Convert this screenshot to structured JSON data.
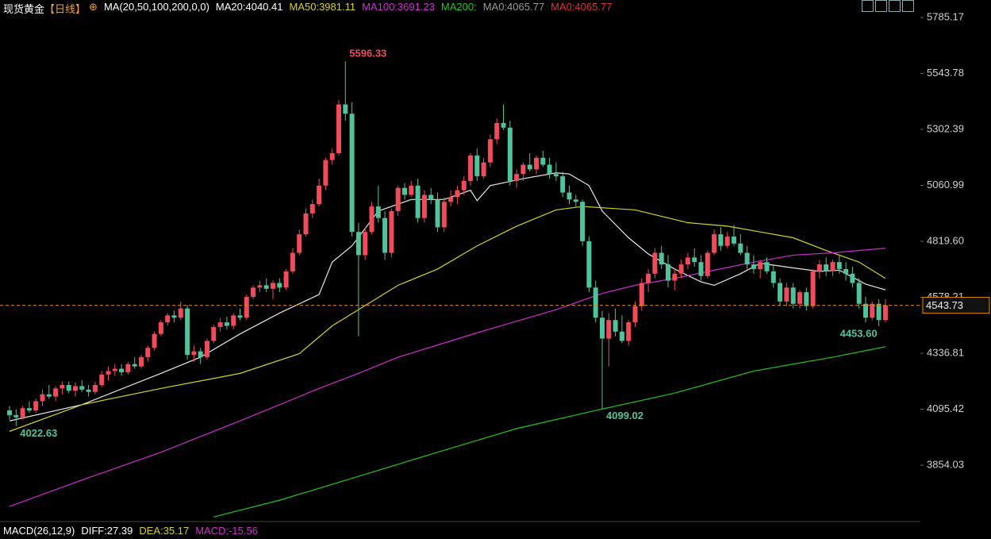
{
  "header": {
    "instrument": "现货黄金",
    "period": "【日线】",
    "ma_params": "MA(20,50,100,200,0,0)",
    "ma_readouts": [
      {
        "text": "MA20:4040.41",
        "color": "#ffffff"
      },
      {
        "text": "MA50:3981.11",
        "color": "#d6d21e"
      },
      {
        "text": "MA100:3691.23",
        "color": "#d030d0"
      },
      {
        "text": "MA200:",
        "color": "#22c422"
      },
      {
        "text": "MA0:4065.77",
        "color": "#9a9a9a"
      },
      {
        "text": "MA0:4065.77",
        "color": "#e03030"
      }
    ]
  },
  "macd_header": [
    {
      "text": "MACD(26,12,9)",
      "color": "#ffffff"
    },
    {
      "text": "DIFF:27.39",
      "color": "#ffffff"
    },
    {
      "text": "DEA:35.17",
      "color": "#d6d21e"
    },
    {
      "text": "MACD:-15.56",
      "color": "#d030d0"
    }
  ],
  "chart_data": {
    "type": "candlestick",
    "up_color": "#ef4b5a",
    "down_color": "#4fc39a",
    "ylim": [
      3617.8,
      5860.5
    ],
    "yticks": [
      3854.03,
      4095.42,
      4336.81,
      4578.21,
      {
        "value": 4819.6,
        "label": "4819.60"
      },
      5060.99,
      5302.39,
      5543.78,
      5785.17
    ],
    "ohlc": [
      [
        4090,
        4110,
        4050,
        4070
      ],
      [
        4070,
        4095,
        4022.63,
        4060
      ],
      [
        4060,
        4110,
        4050,
        4100
      ],
      [
        4100,
        4130,
        4080,
        4090
      ],
      [
        4090,
        4140,
        4080,
        4130
      ],
      [
        4130,
        4180,
        4110,
        4160
      ],
      [
        4160,
        4200,
        4140,
        4150
      ],
      [
        4150,
        4195,
        4130,
        4185
      ],
      [
        4185,
        4215,
        4160,
        4200
      ],
      [
        4200,
        4215,
        4165,
        4175
      ],
      [
        4175,
        4210,
        4150,
        4195
      ],
      [
        4195,
        4220,
        4170,
        4180
      ],
      [
        4180,
        4200,
        4150,
        4170
      ],
      [
        4170,
        4215,
        4160,
        4200
      ],
      [
        4200,
        4260,
        4190,
        4245
      ],
      [
        4245,
        4280,
        4220,
        4260
      ],
      [
        4260,
        4290,
        4240,
        4270
      ],
      [
        4270,
        4290,
        4240,
        4255
      ],
      [
        4255,
        4300,
        4245,
        4290
      ],
      [
        4290,
        4320,
        4270,
        4280
      ],
      [
        4280,
        4330,
        4270,
        4320
      ],
      [
        4320,
        4370,
        4300,
        4360
      ],
      [
        4360,
        4430,
        4350,
        4420
      ],
      [
        4420,
        4480,
        4410,
        4470
      ],
      [
        4470,
        4510,
        4455,
        4500
      ],
      [
        4500,
        4520,
        4470,
        4490
      ],
      [
        4490,
        4560,
        4480,
        4530
      ],
      [
        4530,
        4545,
        4310,
        4330
      ],
      [
        4330,
        4370,
        4300,
        4345
      ],
      [
        4345,
        4360,
        4290,
        4320
      ],
      [
        4320,
        4400,
        4310,
        4390
      ],
      [
        4390,
        4460,
        4380,
        4450
      ],
      [
        4450,
        4490,
        4430,
        4470
      ],
      [
        4470,
        4495,
        4440,
        4455
      ],
      [
        4455,
        4510,
        4440,
        4500
      ],
      [
        4500,
        4530,
        4480,
        4490
      ],
      [
        4490,
        4590,
        4480,
        4580
      ],
      [
        4580,
        4630,
        4570,
        4620
      ],
      [
        4620,
        4650,
        4600,
        4630
      ],
      [
        4630,
        4660,
        4600,
        4615
      ],
      [
        4615,
        4650,
        4570,
        4640
      ],
      [
        4640,
        4660,
        4600,
        4620
      ],
      [
        4620,
        4700,
        4610,
        4690
      ],
      [
        4690,
        4790,
        4680,
        4770
      ],
      [
        4770,
        4870,
        4760,
        4850
      ],
      [
        4850,
        4960,
        4840,
        4940
      ],
      [
        4940,
        5000,
        4920,
        4980
      ],
      [
        4980,
        5090,
        4970,
        5060
      ],
      [
        5060,
        5180,
        5040,
        5170
      ],
      [
        5170,
        5220,
        5150,
        5200
      ],
      [
        5200,
        5430,
        5190,
        5410
      ],
      [
        5410,
        5596.33,
        5340,
        5370
      ],
      [
        5370,
        5420,
        4840,
        4860
      ],
      [
        4860,
        4900,
        4410,
        4760
      ],
      [
        4760,
        4880,
        4740,
        4860
      ],
      [
        4860,
        4990,
        4850,
        4970
      ],
      [
        4970,
        5060,
        4900,
        4920
      ],
      [
        4920,
        4950,
        4740,
        4770
      ],
      [
        4770,
        4960,
        4750,
        4950
      ],
      [
        4950,
        5060,
        4930,
        5050
      ],
      [
        5050,
        5070,
        5000,
        5020
      ],
      [
        5020,
        5080,
        5010,
        5060
      ],
      [
        5060,
        5090,
        4900,
        4920
      ],
      [
        4920,
        5040,
        4900,
        5020
      ],
      [
        5020,
        5050,
        4980,
        5000
      ],
      [
        5000,
        5030,
        4860,
        4880
      ],
      [
        4880,
        5010,
        4860,
        4990
      ],
      [
        4990,
        5040,
        4970,
        5010
      ],
      [
        5010,
        5060,
        4980,
        5040
      ],
      [
        5040,
        5100,
        5020,
        5080
      ],
      [
        5080,
        5200,
        5060,
        5190
      ],
      [
        5190,
        5220,
        5080,
        5100
      ],
      [
        5100,
        5180,
        5090,
        5160
      ],
      [
        5160,
        5280,
        5140,
        5260
      ],
      [
        5260,
        5350,
        5240,
        5330
      ],
      [
        5330,
        5410,
        5300,
        5310
      ],
      [
        5310,
        5340,
        5060,
        5080
      ],
      [
        5080,
        5130,
        5050,
        5110
      ],
      [
        5110,
        5160,
        5080,
        5150
      ],
      [
        5150,
        5200,
        5120,
        5130
      ],
      [
        5130,
        5190,
        5110,
        5180
      ],
      [
        5180,
        5210,
        5140,
        5150
      ],
      [
        5150,
        5180,
        5090,
        5110
      ],
      [
        5110,
        5160,
        5080,
        5100
      ],
      [
        5100,
        5120,
        5010,
        5030
      ],
      [
        5030,
        5060,
        4980,
        5000
      ],
      [
        5000,
        5020,
        4970,
        4990
      ],
      [
        4990,
        5000,
        4800,
        4820
      ],
      [
        4820,
        4840,
        4600,
        4620
      ],
      [
        4620,
        4650,
        4470,
        4490
      ],
      [
        4490,
        4520,
        4099.02,
        4400
      ],
      [
        4400,
        4510,
        4280,
        4480
      ],
      [
        4480,
        4530,
        4410,
        4430
      ],
      [
        4430,
        4500,
        4380,
        4390
      ],
      [
        4390,
        4480,
        4370,
        4470
      ],
      [
        4470,
        4560,
        4450,
        4540
      ],
      [
        4540,
        4660,
        4520,
        4640
      ],
      [
        4640,
        4700,
        4600,
        4680
      ],
      [
        4680,
        4790,
        4660,
        4770
      ],
      [
        4770,
        4800,
        4700,
        4720
      ],
      [
        4720,
        4760,
        4620,
        4650
      ],
      [
        4650,
        4700,
        4610,
        4680
      ],
      [
        4680,
        4740,
        4660,
        4720
      ],
      [
        4720,
        4770,
        4700,
        4750
      ],
      [
        4750,
        4790,
        4710,
        4730
      ],
      [
        4730,
        4760,
        4650,
        4670
      ],
      [
        4670,
        4780,
        4660,
        4770
      ],
      [
        4770,
        4870,
        4760,
        4850
      ],
      [
        4850,
        4880,
        4780,
        4800
      ],
      [
        4800,
        4860,
        4790,
        4840
      ],
      [
        4840,
        4890,
        4800,
        4810
      ],
      [
        4810,
        4850,
        4760,
        4770
      ],
      [
        4770,
        4800,
        4700,
        4720
      ],
      [
        4720,
        4760,
        4680,
        4700
      ],
      [
        4700,
        4740,
        4660,
        4730
      ],
      [
        4730,
        4750,
        4680,
        4690
      ],
      [
        4690,
        4720,
        4620,
        4640
      ],
      [
        4640,
        4660,
        4540,
        4560
      ],
      [
        4560,
        4640,
        4540,
        4620
      ],
      [
        4620,
        4640,
        4530,
        4550
      ],
      [
        4550,
        4610,
        4530,
        4600
      ],
      [
        4600,
        4620,
        4520,
        4540
      ],
      [
        4540,
        4700,
        4530,
        4690
      ],
      [
        4690,
        4740,
        4660,
        4720
      ],
      [
        4720,
        4750,
        4670,
        4690
      ],
      [
        4690,
        4740,
        4670,
        4730
      ],
      [
        4730,
        4760,
        4680,
        4700
      ],
      [
        4700,
        4730,
        4650,
        4680
      ],
      [
        4680,
        4710,
        4620,
        4640
      ],
      [
        4640,
        4660,
        4530,
        4550
      ],
      [
        4550,
        4580,
        4470,
        4490
      ],
      [
        4490,
        4560,
        4480,
        4550
      ],
      [
        4550,
        4570,
        4453.6,
        4480
      ],
      [
        4480,
        4570,
        4470,
        4543.73
      ]
    ],
    "overlays": [
      {
        "color": "#e6e6e6",
        "x": [
          0,
          11,
          23,
          29,
          35,
          41,
          47,
          49,
          52,
          56,
          61,
          66,
          70,
          71,
          73,
          78,
          83,
          85,
          88,
          90,
          94,
          97,
          101,
          105,
          107,
          111,
          114,
          119,
          123,
          126,
          130,
          133
        ],
        "values": [
          4045,
          4115,
          4250,
          4320,
          4420,
          4510,
          4590,
          4730,
          4800,
          4950,
          5000,
          5000,
          5040,
          4995,
          5060,
          5090,
          5115,
          5110,
          5060,
          4950,
          4835,
          4765,
          4700,
          4645,
          4630,
          4680,
          4725,
          4705,
          4690,
          4695,
          4635,
          4610
        ]
      },
      {
        "color": "#d6d21e",
        "x": [
          0,
          11,
          23,
          35,
          44,
          49,
          53,
          59,
          65,
          71,
          77,
          83,
          87,
          95,
          103,
          109,
          114,
          119,
          124,
          129,
          133
        ],
        "values": [
          4000,
          4115,
          4185,
          4250,
          4335,
          4455,
          4525,
          4630,
          4700,
          4800,
          4885,
          4955,
          4970,
          4955,
          4900,
          4885,
          4860,
          4835,
          4780,
          4730,
          4660
        ]
      },
      {
        "color": "#cc2ccc",
        "x": [
          0,
          11,
          23,
          35,
          47,
          53,
          59,
          71,
          83,
          90,
          95,
          101,
          107,
          113,
          119,
          125,
          133
        ],
        "values": [
          3676,
          3790,
          3910,
          4045,
          4185,
          4250,
          4320,
          4425,
          4525,
          4595,
          4630,
          4660,
          4695,
          4730,
          4760,
          4770,
          4790
        ]
      },
      {
        "color": "#22c422",
        "x": [
          31,
          41,
          53,
          65,
          77,
          89,
          101,
          113,
          125,
          133
        ],
        "values": [
          3631,
          3703,
          3806,
          3910,
          4012,
          4090,
          4165,
          4260,
          4320,
          4365
        ]
      }
    ],
    "last_price": 4543.73,
    "last_price_color": "#e08a00",
    "annotations": [
      {
        "x": 51,
        "value": 5596.33
      },
      {
        "x": 1,
        "value": 4022.63
      },
      {
        "x": 90,
        "value": 4099.02
      },
      {
        "x": 132,
        "value": 4453.6,
        "label": "4453.60"
      }
    ]
  }
}
